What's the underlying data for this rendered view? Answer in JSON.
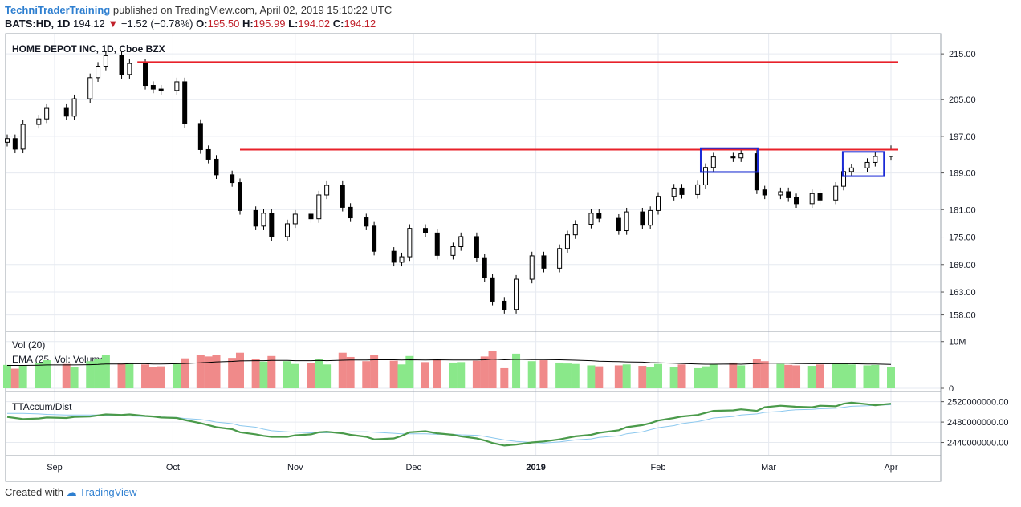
{
  "header": {
    "author": "TechniTraderTraining",
    "published": "published on TradingView.com, April 02, 2019 15:10:22 UTC",
    "symbol": "BATS:HD, 1D",
    "last": "194.12",
    "change_arrow": "▼",
    "change": "−1.52 (−0.78%)",
    "open_label": "O:",
    "open": "195.50",
    "high_label": "H:",
    "high": "195.99",
    "low_label": "L:",
    "low": "194.02",
    "close_label": "C:",
    "close": "194.12"
  },
  "footer": {
    "created_with": "Created with",
    "brand": "TradingView"
  },
  "colors": {
    "up": "#ffffff",
    "down": "#000000",
    "wick": "#000000",
    "resistance": "#e8212a",
    "box": "#1a2ad6",
    "vol_up": "#8ae88a",
    "vol_down": "#f08a8a",
    "accum": "#4a9a4a",
    "accum_ma": "#8cc8ee",
    "grid": "#e6eaf0"
  },
  "chart_data": [
    {
      "type": "candlestick",
      "title": "HOME DEPOT INC, 1D, Cboe BZX",
      "yticks": [
        "215.00",
        "205.00",
        "197.00",
        "189.00",
        "181.00",
        "175.00",
        "169.00",
        "163.00",
        "158.00"
      ],
      "x_labels": [
        "Sep",
        "Oct",
        "Nov",
        "Dec",
        "2019",
        "Feb",
        "Mar",
        "Apr"
      ],
      "ylim": [
        156,
        218
      ],
      "grid": true,
      "resistance_levels": [
        213.2,
        194.1
      ],
      "highlight_boxes": [
        {
          "from": "2019-02-13",
          "to": "2019-02-25",
          "low": 189.2,
          "high": 194.4
        },
        {
          "from": "2019-03-21",
          "to": "2019-03-29",
          "low": 188.3,
          "high": 193.6
        }
      ],
      "series": [
        {
          "dates": [
            "2018-08-20",
            "2018-08-22",
            "2018-08-24",
            "2018-08-28",
            "2018-08-30",
            "2018-09-04",
            "2018-09-06",
            "2018-09-10",
            "2018-09-12",
            "2018-09-14",
            "2018-09-18",
            "2018-09-20",
            "2018-09-24",
            "2018-09-26",
            "2018-09-28",
            "2018-10-02",
            "2018-10-04",
            "2018-10-08",
            "2018-10-10",
            "2018-10-12",
            "2018-10-16",
            "2018-10-18",
            "2018-10-22",
            "2018-10-24",
            "2018-10-26",
            "2018-10-30",
            "2018-11-01",
            "2018-11-05",
            "2018-11-07",
            "2018-11-09",
            "2018-11-13",
            "2018-11-15",
            "2018-11-19",
            "2018-11-21",
            "2018-11-26",
            "2018-11-28",
            "2018-11-30",
            "2018-12-04",
            "2018-12-07",
            "2018-12-11",
            "2018-12-13",
            "2018-12-17",
            "2018-12-19",
            "2018-12-21",
            "2018-12-24",
            "2018-12-27",
            "2018-12-31",
            "2019-01-03",
            "2019-01-07",
            "2019-01-09",
            "2019-01-11",
            "2019-01-15",
            "2019-01-17",
            "2019-01-22",
            "2019-01-24",
            "2019-01-28",
            "2019-01-30",
            "2019-02-01",
            "2019-02-05",
            "2019-02-07",
            "2019-02-11",
            "2019-02-13",
            "2019-02-15",
            "2019-02-20",
            "2019-02-22",
            "2019-02-26",
            "2019-02-28",
            "2019-03-04",
            "2019-03-06",
            "2019-03-08",
            "2019-03-12",
            "2019-03-14",
            "2019-03-18",
            "2019-03-20",
            "2019-03-22",
            "2019-03-26",
            "2019-03-28",
            "2019-04-01"
          ]
        },
        {
          "name": "close",
          "values": [
            196.5,
            194.2,
            199.6,
            200.8,
            203.1,
            201.4,
            205.2,
            209.8,
            212.3,
            214.6,
            210.5,
            212.9,
            208.1,
            207.3,
            207.0,
            208.9,
            199.8,
            194.1,
            192.0,
            188.6,
            186.9,
            180.8,
            177.4,
            180.2,
            175.1,
            177.9,
            180.0,
            179.0,
            184.2,
            186.3,
            181.5,
            179.2,
            177.4,
            171.9,
            169.5,
            170.7,
            176.9,
            175.9,
            171.0,
            172.9,
            175.1,
            170.5,
            166.1,
            161.0,
            159.2,
            165.8,
            170.9,
            168.2,
            172.5,
            175.5,
            177.8,
            180.2,
            179.1,
            176.4,
            180.5,
            177.6,
            180.8,
            183.9,
            185.7,
            184.3,
            186.4,
            190.2,
            192.5,
            192.3,
            193.2,
            185.3,
            184.2,
            184.9,
            183.6,
            182.3,
            184.5,
            183.1,
            186.1,
            189.3,
            190.1,
            191.3,
            192.6,
            194.12
          ]
        }
      ],
      "legend": []
    },
    {
      "type": "bar",
      "title": "Vol (20)",
      "ma_label": "EMA (25, Vol: Volume)",
      "yticks": [
        "10M",
        "0"
      ],
      "ylim": [
        0,
        11500000
      ],
      "values": [
        5000000,
        4200000,
        4800000,
        5500000,
        6000000,
        5200000,
        4500000,
        5800000,
        6300000,
        7100000,
        5300000,
        5500000,
        5100000,
        4600000,
        4700000,
        5300000,
        6400000,
        7200000,
        6800000,
        7100000,
        6500000,
        7600000,
        6200000,
        5700000,
        6900000,
        5800000,
        5200000,
        5400000,
        6300000,
        5100000,
        7600000,
        6700000,
        5800000,
        7200000,
        5900000,
        5100000,
        6900000,
        5600000,
        6300000,
        5500000,
        5600000,
        5900000,
        6800000,
        8000000,
        4300000,
        7400000,
        5800000,
        6000000,
        5500000,
        5300000,
        5200000,
        4900000,
        4700000,
        4900000,
        5100000,
        4800000,
        4500000,
        5200000,
        4600000,
        5100000,
        4300000,
        4700000,
        5100000,
        5500000,
        4900000,
        6300000,
        5800000,
        5200000,
        5000000,
        4900000,
        4800000,
        5100000,
        5300000,
        5400000,
        5100000,
        4900000,
        5000000,
        4600000
      ],
      "ema_values": [
        4900000,
        4900000,
        4900000,
        4950000,
        5000000,
        5000000,
        5000000,
        5050000,
        5100000,
        5200000,
        5200000,
        5250000,
        5250000,
        5200000,
        5200000,
        5250000,
        5300000,
        5450000,
        5550000,
        5650000,
        5750000,
        5850000,
        5900000,
        5900000,
        5950000,
        5950000,
        5900000,
        5900000,
        5950000,
        5900000,
        6000000,
        6050000,
        6050000,
        6100000,
        6100000,
        6050000,
        6100000,
        6050000,
        6100000,
        6050000,
        6050000,
        6050000,
        6100000,
        6250000,
        6100000,
        6200000,
        6150000,
        6150000,
        6100000,
        6050000,
        6000000,
        5900000,
        5800000,
        5700000,
        5650000,
        5600000,
        5500000,
        5450000,
        5350000,
        5300000,
        5200000,
        5150000,
        5150000,
        5200000,
        5150000,
        5300000,
        5350000,
        5350000,
        5350000,
        5300000,
        5250000,
        5250000,
        5250000,
        5250000,
        5250000,
        5200000,
        5200000,
        5100000
      ]
    },
    {
      "type": "line",
      "title": "TTAccum/Dist",
      "yticks": [
        "2520000000.00",
        "2480000000.00",
        "2440000000.00"
      ],
      "ylim": [
        2422000000,
        2532000000
      ],
      "series": [
        {
          "name": "TTAccum/Dist",
          "values": [
            2490000000,
            2488000000,
            2486000000,
            2487000000,
            2489000000,
            2488000000,
            2490000000,
            2491000000,
            2493000000,
            2495000000,
            2494000000,
            2495000000,
            2492000000,
            2491000000,
            2489000000,
            2488000000,
            2484000000,
            2478000000,
            2474000000,
            2470000000,
            2466000000,
            2460000000,
            2456000000,
            2453000000,
            2451000000,
            2451000000,
            2454000000,
            2456000000,
            2460000000,
            2461000000,
            2458000000,
            2455000000,
            2451000000,
            2446000000,
            2448000000,
            2453000000,
            2460000000,
            2462000000,
            2458000000,
            2455000000,
            2452000000,
            2448000000,
            2444000000,
            2439000000,
            2434000000,
            2436000000,
            2440000000,
            2442000000,
            2446000000,
            2449000000,
            2452000000,
            2455000000,
            2459000000,
            2464000000,
            2470000000,
            2474000000,
            2478000000,
            2483000000,
            2488000000,
            2491000000,
            2494000000,
            2498000000,
            2502000000,
            2503000000,
            2505000000,
            2502000000,
            2509000000,
            2512000000,
            2511000000,
            2510000000,
            2509000000,
            2512000000,
            2511000000,
            2516000000,
            2518000000,
            2515000000,
            2513000000,
            2516000000
          ]
        },
        {
          "name": "",
          "values": [
            2497000000,
            2497000000,
            2497000000,
            2496000000,
            2495000000,
            2494000000,
            2494000000,
            2494000000,
            2494000000,
            2493000000,
            2492000000,
            2492000000,
            2491000000,
            2491000000,
            2490000000,
            2489000000,
            2487000000,
            2485000000,
            2483000000,
            2480000000,
            2477000000,
            2473000000,
            2470000000,
            2466000000,
            2463000000,
            2461000000,
            2460000000,
            2459000000,
            2459000000,
            2459000000,
            2460000000,
            2461000000,
            2461000000,
            2460000000,
            2458000000,
            2457000000,
            2457000000,
            2457000000,
            2456000000,
            2456000000,
            2455000000,
            2454000000,
            2452000000,
            2449000000,
            2445000000,
            2442000000,
            2440000000,
            2439000000,
            2441000000,
            2443000000,
            2445000000,
            2447000000,
            2450000000,
            2453000000,
            2457000000,
            2461000000,
            2465000000,
            2469000000,
            2473000000,
            2477000000,
            2481000000,
            2484000000,
            2488000000,
            2491000000,
            2494000000,
            2496000000,
            2499000000,
            2501000000,
            2503000000,
            2504000000,
            2505000000,
            2506000000,
            2507000000,
            2509000000,
            2511000000,
            2512000000,
            2513000000,
            2514000000
          ]
        }
      ]
    }
  ]
}
